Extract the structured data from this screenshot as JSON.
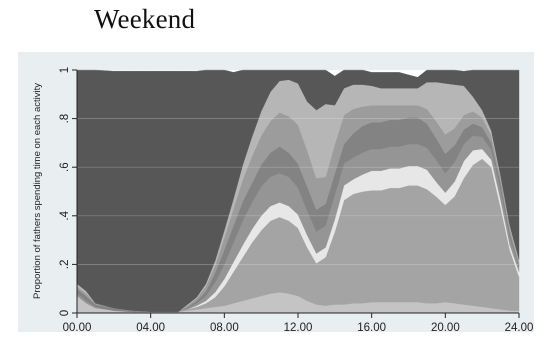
{
  "heading": "Weekend",
  "chart_data": {
    "type": "area",
    "stacked": true,
    "title": "Weekend",
    "ylabel": "Proportion of fathers spending time on each activity",
    "xlabel": "",
    "xlim": [
      0,
      24
    ],
    "ylim": [
      0,
      1
    ],
    "xticks": [
      "00.00",
      "04.00",
      "08.00",
      "12.00",
      "16.00",
      "20.00",
      "24.00"
    ],
    "yticks": [
      "0",
      ".2",
      ".4",
      ".6",
      ".8",
      "1"
    ],
    "grid": true,
    "legend": "none",
    "x": [
      0,
      0.5,
      1,
      2,
      3,
      4,
      5,
      5.5,
      6,
      6.5,
      7,
      7.5,
      8,
      8.5,
      9,
      9.5,
      10,
      10.5,
      11,
      11.5,
      12,
      12.5,
      13,
      13.5,
      14,
      14.5,
      15,
      15.5,
      16,
      16.5,
      17,
      17.5,
      18,
      18.5,
      19,
      19.5,
      20,
      20.5,
      21,
      21.5,
      22,
      22.5,
      23,
      23.5,
      24
    ],
    "series": [
      {
        "color": "#c4c4c4",
        "values": [
          0.07,
          0.04,
          0.02,
          0.01,
          0.005,
          0.005,
          0.005,
          0.005,
          0.01,
          0.015,
          0.02,
          0.025,
          0.03,
          0.04,
          0.05,
          0.06,
          0.07,
          0.08,
          0.085,
          0.08,
          0.07,
          0.05,
          0.035,
          0.03,
          0.035,
          0.035,
          0.04,
          0.04,
          0.045,
          0.045,
          0.045,
          0.045,
          0.045,
          0.045,
          0.04,
          0.04,
          0.045,
          0.04,
          0.035,
          0.03,
          0.025,
          0.02,
          0.015,
          0.01,
          0.01
        ]
      },
      {
        "color": "#a4a4a4",
        "values": [
          0,
          0,
          0,
          0,
          0,
          0,
          0,
          0,
          0.005,
          0.01,
          0.02,
          0.04,
          0.08,
          0.13,
          0.18,
          0.23,
          0.27,
          0.3,
          0.31,
          0.3,
          0.28,
          0.22,
          0.17,
          0.2,
          0.3,
          0.43,
          0.45,
          0.46,
          0.46,
          0.46,
          0.47,
          0.47,
          0.48,
          0.48,
          0.47,
          0.44,
          0.4,
          0.44,
          0.52,
          0.58,
          0.61,
          0.58,
          0.42,
          0.25,
          0.14
        ]
      },
      {
        "color": "#e7e7e7",
        "values": [
          0,
          0,
          0,
          0,
          0,
          0,
          0,
          0,
          0,
          0.005,
          0.01,
          0.02,
          0.03,
          0.04,
          0.05,
          0.055,
          0.06,
          0.06,
          0.06,
          0.06,
          0.055,
          0.05,
          0.04,
          0.04,
          0.05,
          0.06,
          0.06,
          0.07,
          0.08,
          0.08,
          0.08,
          0.08,
          0.08,
          0.08,
          0.08,
          0.06,
          0.05,
          0.06,
          0.07,
          0.06,
          0.04,
          0.03,
          0.03,
          0.02,
          0.02
        ]
      },
      {
        "color": "#959595",
        "values": [
          0.01,
          0.01,
          0.005,
          0,
          0,
          0,
          0,
          0,
          0.005,
          0.01,
          0.02,
          0.04,
          0.06,
          0.08,
          0.1,
          0.11,
          0.12,
          0.12,
          0.12,
          0.12,
          0.11,
          0.1,
          0.09,
          0.09,
          0.1,
          0.09,
          0.09,
          0.09,
          0.09,
          0.09,
          0.09,
          0.09,
          0.09,
          0.09,
          0.09,
          0.09,
          0.08,
          0.08,
          0.07,
          0.06,
          0.05,
          0.04,
          0.04,
          0.03,
          0.02
        ]
      },
      {
        "color": "#838383",
        "values": [
          0.02,
          0.02,
          0.01,
          0.01,
          0.005,
          0,
          0,
          0,
          0.005,
          0.01,
          0.02,
          0.04,
          0.06,
          0.07,
          0.08,
          0.08,
          0.09,
          0.1,
          0.11,
          0.1,
          0.1,
          0.1,
          0.09,
          0.09,
          0.09,
          0.08,
          0.1,
          0.11,
          0.11,
          0.11,
          0.11,
          0.11,
          0.11,
          0.11,
          0.1,
          0.09,
          0.08,
          0.07,
          0.06,
          0.05,
          0.04,
          0.03,
          0.03,
          0.02,
          0.01
        ]
      },
      {
        "color": "#9c9c9c",
        "values": [
          0.01,
          0.01,
          0.005,
          0,
          0,
          0,
          0,
          0,
          0.005,
          0.01,
          0.02,
          0.03,
          0.05,
          0.07,
          0.09,
          0.11,
          0.12,
          0.13,
          0.14,
          0.15,
          0.16,
          0.15,
          0.13,
          0.11,
          0.12,
          0.12,
          0.1,
          0.08,
          0.07,
          0.07,
          0.06,
          0.06,
          0.05,
          0.05,
          0.06,
          0.07,
          0.08,
          0.07,
          0.06,
          0.05,
          0.04,
          0.03,
          0.02,
          0.02,
          0.01
        ]
      },
      {
        "color": "#b6b6b6",
        "values": [
          0.01,
          0.01,
          0,
          0,
          0,
          0,
          0,
          0,
          0.005,
          0.005,
          0.01,
          0.02,
          0.03,
          0.04,
          0.06,
          0.08,
          0.1,
          0.12,
          0.13,
          0.15,
          0.17,
          0.2,
          0.28,
          0.3,
          0.16,
          0.11,
          0.1,
          0.09,
          0.08,
          0.07,
          0.07,
          0.07,
          0.07,
          0.07,
          0.11,
          0.16,
          0.21,
          0.18,
          0.12,
          0.06,
          0.03,
          0.02,
          0.01,
          0.01,
          0.01
        ]
      },
      {
        "color": "#575757",
        "values": [
          0.88,
          0.91,
          0.96,
          0.975,
          0.985,
          0.99,
          0.99,
          0.99,
          0.96,
          0.93,
          0.88,
          0.785,
          0.66,
          0.52,
          0.39,
          0.275,
          0.18,
          0.09,
          0.055,
          0.04,
          0.055,
          0.13,
          0.2,
          0.14,
          0.12,
          0.08,
          0.06,
          0.06,
          0.055,
          0.065,
          0.065,
          0.065,
          0.055,
          0.045,
          0.05,
          0.05,
          0.06,
          0.06,
          0.06,
          0.11,
          0.17,
          0.25,
          0.45,
          0.65,
          0.78
        ]
      }
    ]
  }
}
